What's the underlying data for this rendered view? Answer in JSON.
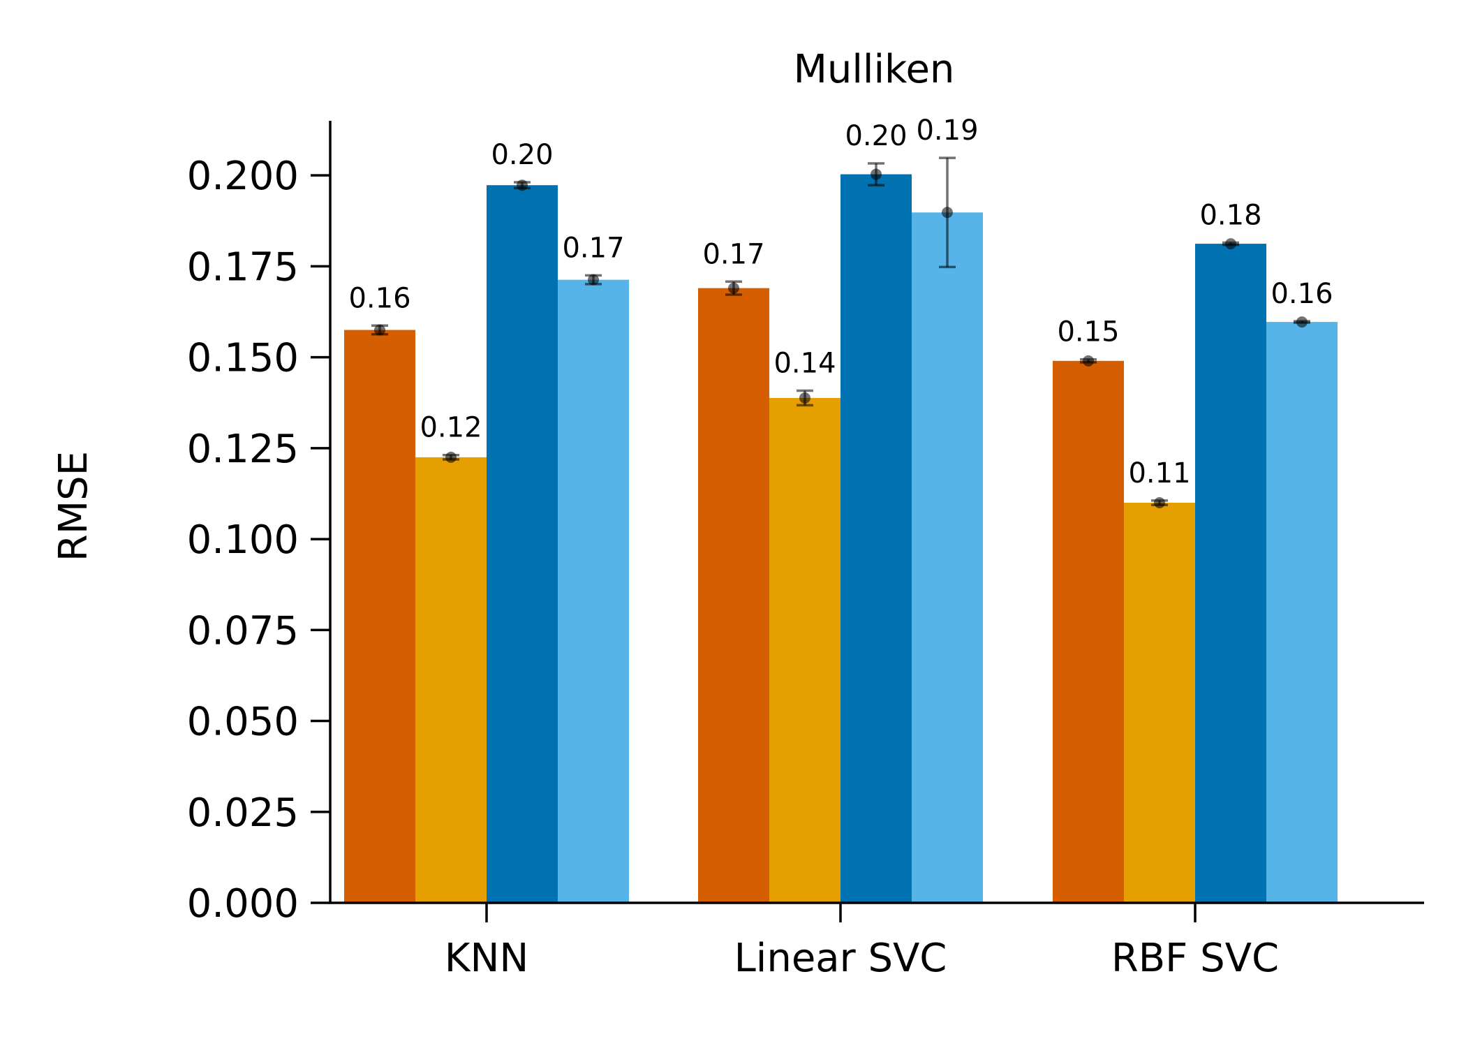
{
  "chart_data": {
    "type": "bar",
    "title": "Mulliken",
    "xlabel": "",
    "ylabel": "RMSE",
    "categories": [
      "KNN",
      "Linear SVC",
      "RBF SVC"
    ],
    "ylim": [
      0,
      0.215
    ],
    "yticks": [
      "0.000",
      "0.025",
      "0.050",
      "0.075",
      "0.100",
      "0.125",
      "0.150",
      "0.175",
      "0.200"
    ],
    "series": [
      {
        "color": "#D55E00",
        "values": [
          0.1575,
          0.169,
          0.149
        ],
        "errors": [
          0.0012,
          0.0018,
          0.0004
        ],
        "labels": [
          "0.16",
          "0.17",
          "0.15"
        ]
      },
      {
        "color": "#E69F00",
        "values": [
          0.1225,
          0.1388,
          0.11
        ],
        "errors": [
          0.0006,
          0.002,
          0.0006
        ],
        "labels": [
          "0.12",
          "0.14",
          "0.11"
        ]
      },
      {
        "color": "#0072B2",
        "values": [
          0.1973,
          0.2003,
          0.1812
        ],
        "errors": [
          0.0008,
          0.003,
          0.0003
        ],
        "labels": [
          "0.20",
          "0.20",
          "0.18"
        ]
      },
      {
        "color": "#56B4E9",
        "values": [
          0.1713,
          0.1898,
          0.1597
        ],
        "errors": [
          0.0012,
          0.015,
          0.0002
        ],
        "labels": [
          "0.17",
          "0.19",
          "0.16"
        ]
      }
    ],
    "grid": false,
    "legend": "none"
  }
}
